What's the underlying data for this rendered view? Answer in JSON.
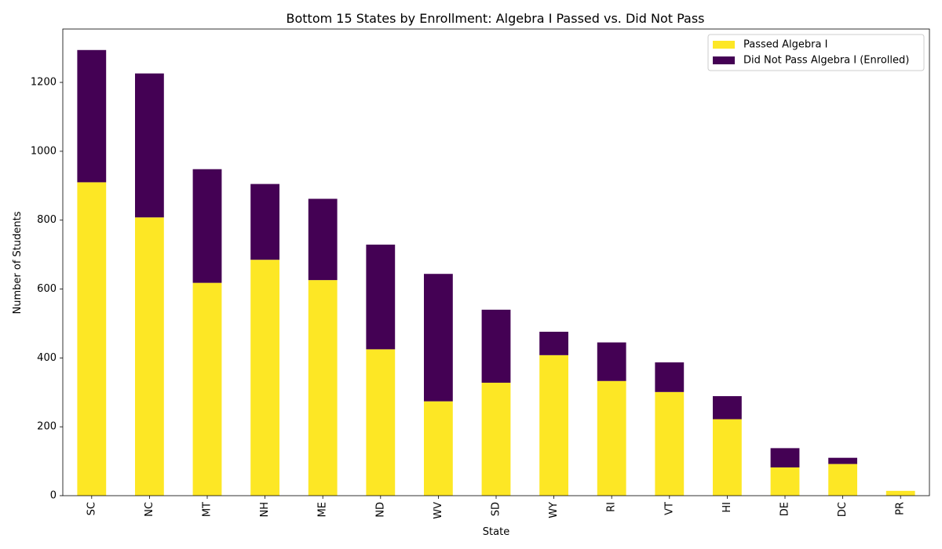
{
  "chart_data": {
    "type": "bar",
    "stacked": true,
    "title": "Bottom 15 States by Enrollment: Algebra I Passed vs. Did Not Pass",
    "xlabel": "State",
    "ylabel": "Number of Students",
    "ylim": [
      0,
      1355
    ],
    "yticks": [
      0,
      200,
      400,
      600,
      800,
      1000,
      1200
    ],
    "legend_position": "top-right",
    "categories": [
      "SC",
      "NC",
      "MT",
      "NH",
      "ME",
      "ND",
      "WV",
      "SD",
      "WY",
      "RI",
      "VT",
      "HI",
      "DE",
      "DC",
      "PR"
    ],
    "series": [
      {
        "name": "Passed Algebra I",
        "color": "#fde725",
        "values": [
          910,
          808,
          618,
          685,
          626,
          425,
          274,
          328,
          408,
          333,
          301,
          222,
          82,
          92,
          14
        ]
      },
      {
        "name": "Did Not Pass Algebra I (Enrolled)",
        "color": "#440154",
        "values": [
          384,
          418,
          330,
          220,
          236,
          304,
          370,
          212,
          68,
          112,
          86,
          67,
          56,
          18,
          0
        ]
      }
    ]
  }
}
